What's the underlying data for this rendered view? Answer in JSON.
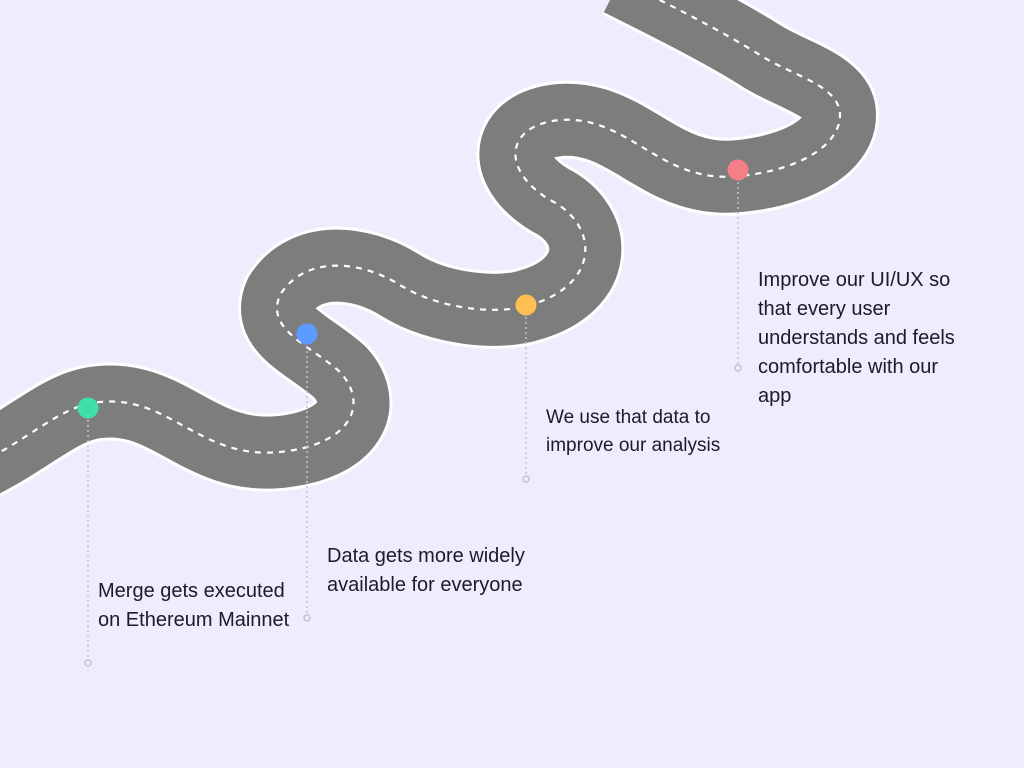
{
  "road": {
    "color": "#7d7d7d",
    "edge_color": "#ffffff",
    "lane_color": "#ffffff"
  },
  "milestones": [
    {
      "label": "Merge gets executed\non Ethereum Mainnet",
      "color": "#3fe0a8",
      "icon": "milestone-dot"
    },
    {
      "label": "Data gets more widely\navailable for everyone",
      "color": "#5a9cff",
      "icon": "milestone-dot"
    },
    {
      "label": "We use that data to\nimprove our analysis",
      "color": "#ffbf52",
      "icon": "milestone-dot"
    },
    {
      "label": "Improve our UI/UX so\nthat every user\nunderstands and feels\ncomfortable with our\napp",
      "color": "#f57f86",
      "icon": "milestone-dot"
    }
  ]
}
